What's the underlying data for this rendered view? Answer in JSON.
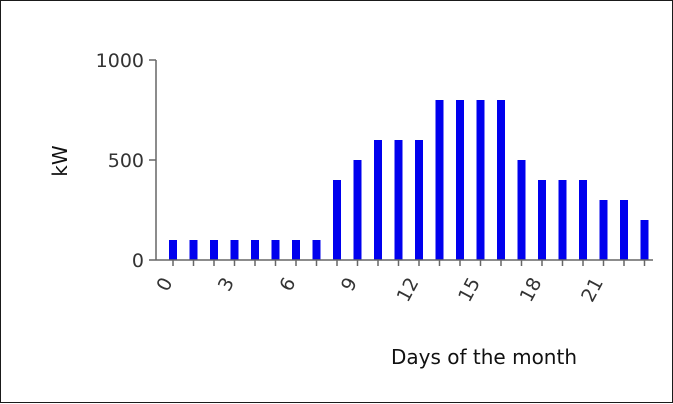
{
  "chart_data": {
    "type": "bar",
    "title": "",
    "xlabel": "Days of the month",
    "ylabel": "kW",
    "x": [
      0,
      1,
      2,
      3,
      4,
      5,
      6,
      7,
      8,
      9,
      10,
      11,
      12,
      13,
      14,
      15,
      16,
      17,
      18,
      19,
      20,
      21,
      22,
      23
    ],
    "values": [
      100,
      100,
      100,
      100,
      100,
      100,
      100,
      100,
      400,
      500,
      600,
      600,
      600,
      800,
      800,
      800,
      800,
      500,
      400,
      400,
      400,
      300,
      300,
      200
    ],
    "ylim": [
      0,
      1000
    ],
    "yticks": [
      0,
      500,
      1000
    ],
    "xticks": [
      0,
      3,
      6,
      9,
      12,
      15,
      18,
      21
    ],
    "bar_color": "#0000ee",
    "axis_color": "#666666",
    "grid": false,
    "legend": "none"
  }
}
